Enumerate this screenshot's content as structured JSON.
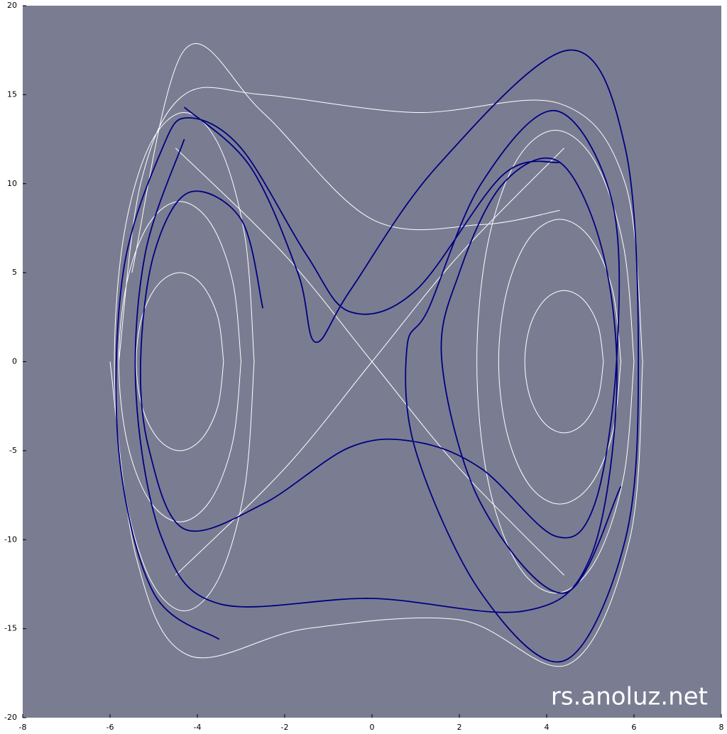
{
  "chart_data": {
    "type": "line",
    "annotation": "rs.anoluz.net",
    "background": "#7a7d92",
    "xlim": [
      -8,
      8
    ],
    "xticks": [
      -8,
      -6,
      -4,
      -2,
      0,
      2,
      4,
      6,
      8
    ],
    "ylim": [
      -20,
      20
    ],
    "yticks": [
      -20,
      -15,
      -10,
      -5,
      0,
      5,
      10,
      15,
      20
    ],
    "smooth": true,
    "series": [
      {
        "color": "#ffffff",
        "x": [
          -3.4,
          -3.53,
          -3.9,
          -4.4,
          -4.9,
          -5.27,
          -5.4,
          -5.27,
          -4.9,
          -4.4,
          -3.9,
          -3.53,
          -3.4,
          null,
          -3.0,
          -3.19,
          -3.7,
          -4.4,
          -5.1,
          -5.61,
          -5.8,
          -5.61,
          -5.1,
          -4.4,
          -3.7,
          -3.19,
          -3.0,
          null,
          -2.7,
          -2.91,
          -3.5,
          -4.3,
          -5.1,
          -5.69,
          -5.9,
          -5.69,
          -5.1,
          -4.3,
          -3.5,
          -2.91,
          -2.7,
          null,
          5.3,
          5.18,
          4.85,
          4.4,
          3.95,
          3.62,
          3.5,
          3.62,
          3.95,
          4.4,
          4.85,
          5.18,
          5.3,
          null,
          5.7,
          5.51,
          5.0,
          4.3,
          3.6,
          3.09,
          2.9,
          3.09,
          3.6,
          4.3,
          5.0,
          5.51,
          5.7,
          null,
          6.0,
          5.76,
          5.1,
          4.2,
          3.3,
          2.64,
          2.4,
          2.64,
          3.3,
          4.2,
          5.1,
          5.76,
          6.0,
          null,
          -5.8,
          -5.3,
          -4.3,
          -2.5,
          1,
          4.3,
          5.8,
          6.2,
          null,
          -6.0,
          -5.4,
          -4.2,
          -1.5,
          2,
          4.5,
          5.9,
          6.2,
          null,
          -4.5,
          -2,
          0,
          2,
          4.4,
          null,
          -4.5,
          -2,
          0,
          2,
          4.4,
          null,
          -5.5,
          -4.3,
          -2.5,
          0,
          2.5,
          4.3
        ],
        "values": [
          0,
          2.5,
          4.33,
          5,
          4.33,
          2.5,
          0,
          -2.5,
          -4.33,
          -5,
          -4.33,
          -2.5,
          0,
          null,
          0,
          4.5,
          7.79,
          9,
          7.79,
          4.5,
          0,
          -4.5,
          -7.79,
          -9,
          -7.79,
          -4.5,
          0,
          null,
          0,
          7,
          12.12,
          14,
          12.12,
          7,
          0,
          -7,
          -12.12,
          -14,
          -12.12,
          -7,
          0,
          null,
          0,
          2,
          3.46,
          4,
          3.46,
          2,
          0,
          -2,
          -3.46,
          -4,
          -3.46,
          -2,
          0,
          null,
          0,
          4,
          6.93,
          8,
          6.93,
          4,
          0,
          -4,
          -6.93,
          -8,
          -6.93,
          -4,
          0,
          null,
          0,
          6.5,
          11.26,
          13,
          11.26,
          6.5,
          0,
          -6.5,
          -11.26,
          -13,
          -11.26,
          -6.5,
          0,
          null,
          0,
          10,
          15,
          15,
          14,
          14.5,
          10,
          0,
          null,
          0,
          -11,
          -16.5,
          -15,
          -14.5,
          -17,
          -10,
          0,
          null,
          -12,
          -6,
          0,
          6,
          12,
          null,
          12,
          6,
          0,
          -6,
          -12,
          null,
          5,
          17.5,
          14,
          8,
          7.7,
          8.5
        ]
      },
      {
        "color": "#000080",
        "x": [
          -4.3,
          -2.8,
          -1.7,
          -1.3,
          -0.5,
          1.5,
          4.5,
          5.8,
          6.1,
          5.8,
          4.4,
          2.5,
          1,
          0.8,
          1.3,
          2.5,
          4.2,
          5.5,
          5.6,
          5.1,
          4.2,
          2.5,
          1.0,
          -0.5,
          -2.5,
          -4.3,
          -5.1,
          -5.3,
          -5,
          -4.2,
          -3,
          -2.5,
          null,
          -4.3,
          -5.2,
          -5.4,
          -4.8,
          -3.5,
          0,
          3.5,
          5,
          5.6,
          5.3,
          4.3,
          3,
          2,
          1.6,
          2.5,
          4.4,
          5.7,
          null,
          -3.5,
          -5,
          -5.8,
          -5.7,
          -4.8,
          -4.2,
          -3,
          -1.5,
          -0.5,
          1,
          3,
          4.3
        ],
        "values": [
          14.3,
          11,
          5,
          1.1,
          4,
          11,
          17.5,
          12,
          0,
          -10,
          -16.8,
          -13,
          -5,
          0.8,
          3,
          10,
          14.1,
          9,
          0,
          -8,
          -9.8,
          -6,
          -4.5,
          -4.8,
          -8,
          -9.4,
          -5,
          0,
          6,
          9.5,
          8,
          3,
          null,
          12.5,
          6,
          -2,
          -10,
          -13.6,
          -13.3,
          -14,
          -11,
          -2,
          6,
          11.2,
          10,
          5,
          0,
          -8,
          -13,
          -7,
          null,
          -15.6,
          -13,
          -5,
          5,
          12,
          13.7,
          12,
          6,
          2.8,
          4,
          10.5,
          11.2
        ]
      }
    ]
  }
}
